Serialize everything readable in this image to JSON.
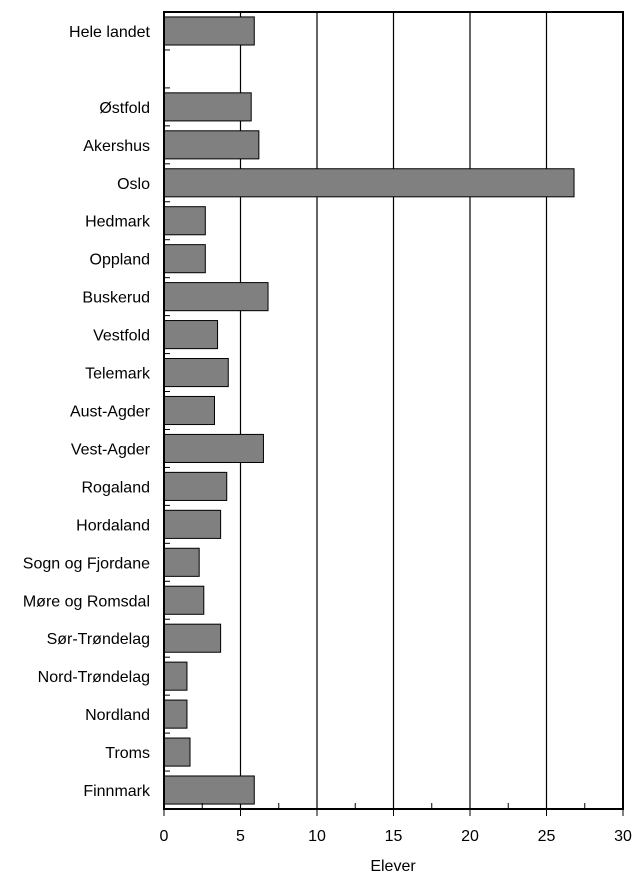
{
  "chart_data": {
    "type": "bar",
    "orientation": "horizontal",
    "categories": [
      "Hele landet",
      "",
      "Østfold",
      "Akershus",
      "Oslo",
      "Hedmark",
      "Oppland",
      "Buskerud",
      "Vestfold",
      "Telemark",
      "Aust-Agder",
      "Vest-Agder",
      "Rogaland",
      "Hordaland",
      "Sogn og Fjordane",
      "Møre og Romsdal",
      "Sør-Trøndelag",
      "Nord-Trøndelag",
      "Nordland",
      "Troms",
      "Finnmark"
    ],
    "values": [
      5.9,
      null,
      5.7,
      6.2,
      26.8,
      2.7,
      2.7,
      6.8,
      3.5,
      4.2,
      3.3,
      6.5,
      4.1,
      3.7,
      2.3,
      2.6,
      3.7,
      1.5,
      1.5,
      1.7,
      5.9
    ],
    "title": "",
    "xlabel": "Elever",
    "ylabel": "",
    "xlim": [
      0,
      30
    ],
    "x_major_ticks": [
      0,
      5,
      10,
      15,
      20,
      25,
      30
    ],
    "x_tick_labels": [
      "0",
      "5",
      "10",
      "15",
      "20",
      "25",
      "30"
    ],
    "x_minor_step": 2.5,
    "grid": "vertical major gridlines",
    "legend": "none",
    "bar_color": "#808080",
    "bar_edge_color": "#000000"
  }
}
